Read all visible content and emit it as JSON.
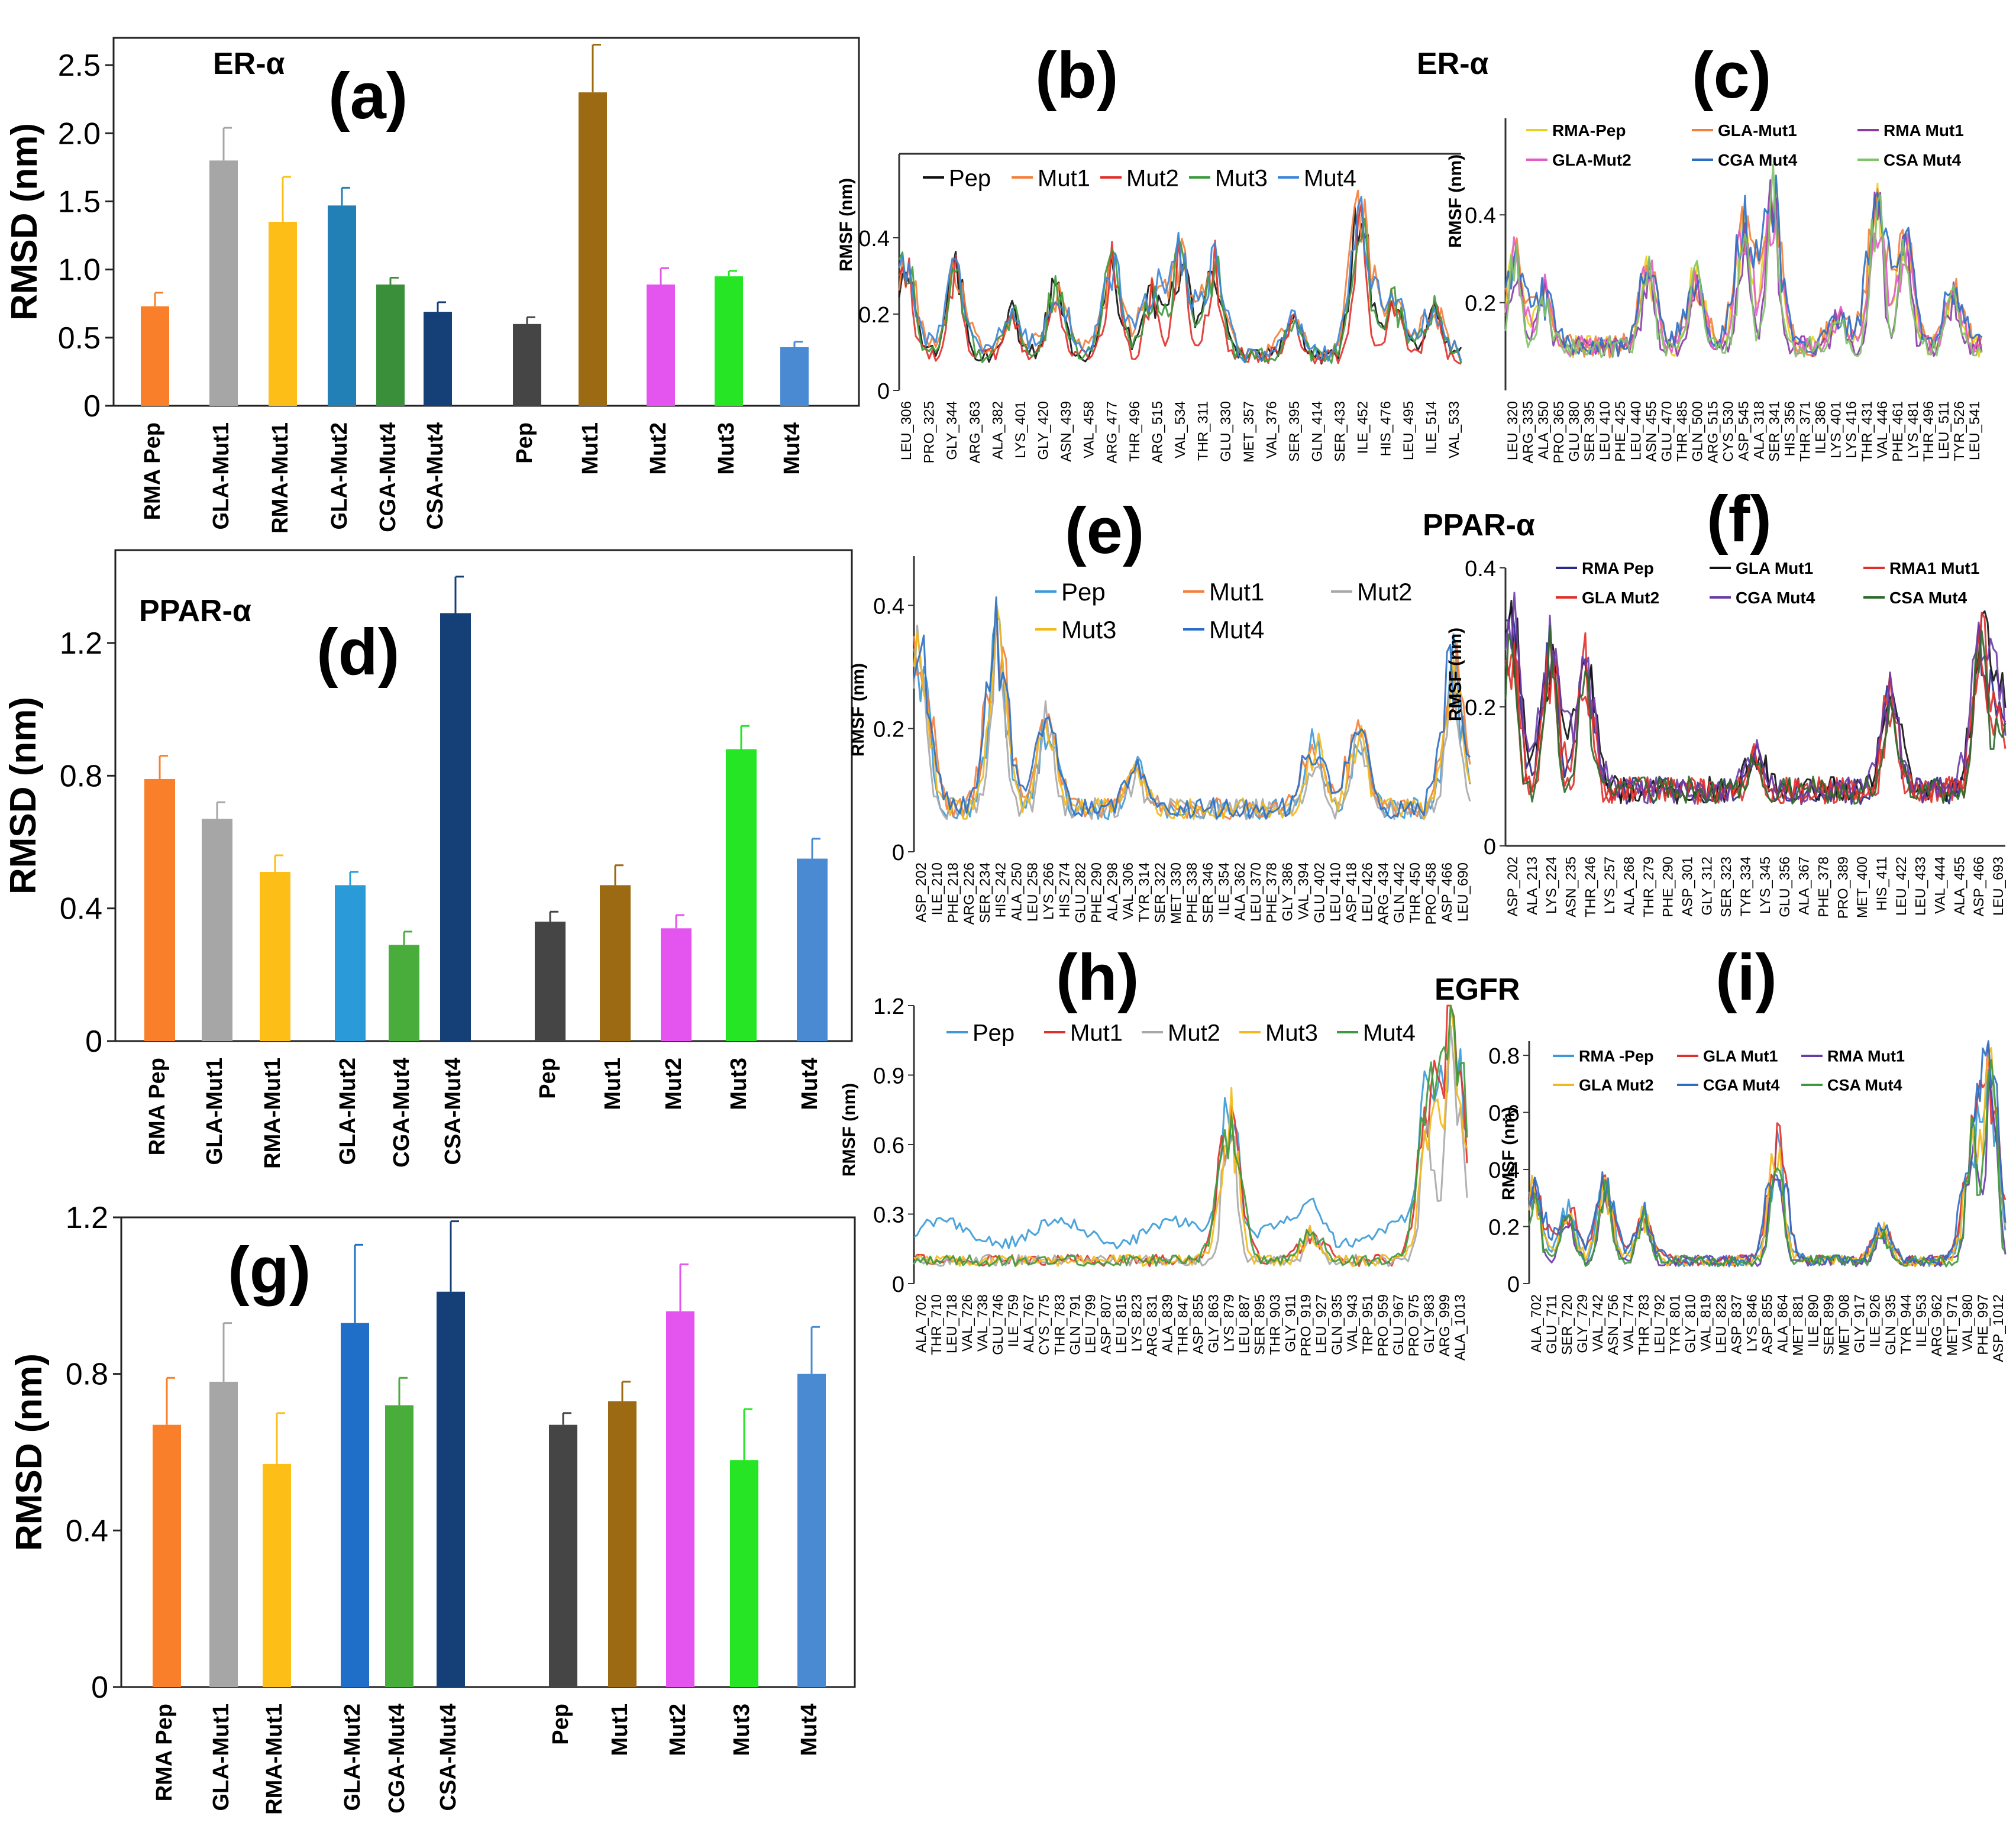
{
  "panels": {
    "a": {
      "letter": "(a)",
      "label": "ER-α"
    },
    "b": {
      "letter": "(b)"
    },
    "c": {
      "letter": "(c)",
      "label": "ER-α"
    },
    "d": {
      "letter": "(d)",
      "label": "PPAR-α"
    },
    "e": {
      "letter": "(e)"
    },
    "f": {
      "letter": "(f)",
      "label": "PPAR-α"
    },
    "g": {
      "letter": "(g)"
    },
    "h": {
      "letter": "(h)",
      "label": "EGFR"
    },
    "i": {
      "letter": "(i)"
    }
  },
  "chart_data": [
    {
      "id": "a",
      "type": "bar",
      "ylabel": "RMSD (nm)",
      "ylim": [
        0,
        2.7
      ],
      "yticks": [
        "0",
        "0.5",
        "1.0",
        "1.5",
        "2.0",
        "2.5"
      ],
      "ytick_values": [
        0,
        0.5,
        1.0,
        1.5,
        2.0,
        2.5
      ],
      "categories": [
        "RMA Pep",
        "GLA-Mut1",
        "RMA-Mut1",
        "GLA-Mut2",
        "CGA-Mut4",
        "CSA-Mut4",
        "Pep",
        "Mut1",
        "Mut2",
        "Mut3",
        "Mut4"
      ],
      "values": [
        0.73,
        1.8,
        1.35,
        1.47,
        0.89,
        0.69,
        0.6,
        2.3,
        0.89,
        0.95,
        0.43
      ],
      "errors": [
        0.1,
        0.24,
        0.33,
        0.13,
        0.05,
        0.07,
        0.05,
        0.35,
        0.12,
        0.04,
        0.04
      ],
      "colors": [
        "#f97f2a",
        "#a6a6a6",
        "#fdbf17",
        "#2280b6",
        "#3a8f3a",
        "#153f77",
        "#454545",
        "#9c6a12",
        "#e454ee",
        "#25e525",
        "#4a8ad2"
      ]
    },
    {
      "id": "b",
      "type": "line",
      "ylabel": "RMSF (nm)",
      "ylim": [
        0,
        0.62
      ],
      "yticks": [
        "0",
        "0.2",
        "0.4"
      ],
      "ytick_values": [
        0,
        0.2,
        0.4
      ],
      "xticks": [
        "LEU_306",
        "PRO_325",
        "GLY_344",
        "ARG_363",
        "ALA_382",
        "LYS_401",
        "GLY_420",
        "ASN_439",
        "VAL_458",
        "ARG_477",
        "THR_496",
        "ARG_515",
        "VAL_534",
        "THR_311",
        "GLU_330",
        "MET_357",
        "VAL_376",
        "SER_395",
        "GLN_414",
        "SER_433",
        "ILE_452",
        "HIS_476",
        "LEU_495",
        "ILE_514",
        "VAL_533"
      ],
      "peaks": [
        [
          0.01,
          0.42
        ],
        [
          0.1,
          0.36
        ],
        [
          0.2,
          0.22
        ],
        [
          0.28,
          0.3
        ],
        [
          0.38,
          0.38
        ],
        [
          0.45,
          0.3
        ],
        [
          0.5,
          0.4
        ],
        [
          0.56,
          0.38
        ],
        [
          0.7,
          0.2
        ],
        [
          0.82,
          0.55
        ],
        [
          0.88,
          0.27
        ],
        [
          0.95,
          0.25
        ]
      ],
      "base": 0.09,
      "series": [
        {
          "name": "Pep",
          "color": "#111111"
        },
        {
          "name": "Mut1",
          "color": "#f47e3a"
        },
        {
          "name": "Mut2",
          "color": "#e0302a"
        },
        {
          "name": "Mut3",
          "color": "#3c9a3c"
        },
        {
          "name": "Mut4",
          "color": "#3a86d8"
        }
      ]
    },
    {
      "id": "c",
      "type": "line",
      "ylabel": "RMSF (nm)",
      "ylim": [
        0,
        0.62
      ],
      "yticks": [
        "0.2",
        "0.4"
      ],
      "ytick_values": [
        0.2,
        0.4
      ],
      "xticks": [
        "LEU_320",
        "ARG_335",
        "ALA_350",
        "PRO_365",
        "GLU_380",
        "SER_395",
        "LEU_410",
        "PHE_425",
        "LEU_440",
        "ASN_455",
        "GLU_470",
        "THR_485",
        "GLN_500",
        "ARG_515",
        "CYS_530",
        "ASP_545",
        "ALA_318",
        "SER_341",
        "HIS_356",
        "THR_371",
        "ILE_386",
        "LYS_401",
        "LYS_416",
        "THR_431",
        "VAL_446",
        "PHE_461",
        "LYS_481",
        "THR_496",
        "LEU_511",
        "TYR_526",
        "LEU_541"
      ],
      "peaks": [
        [
          0.02,
          0.35
        ],
        [
          0.08,
          0.25
        ],
        [
          0.3,
          0.32
        ],
        [
          0.4,
          0.3
        ],
        [
          0.5,
          0.44
        ],
        [
          0.56,
          0.52
        ],
        [
          0.7,
          0.2
        ],
        [
          0.78,
          0.52
        ],
        [
          0.84,
          0.42
        ],
        [
          0.94,
          0.25
        ]
      ],
      "base": 0.1,
      "series": [
        {
          "name": "RMA-Pep",
          "color": "#e8d21e"
        },
        {
          "name": "GLA-Mut1",
          "color": "#f47e3a"
        },
        {
          "name": "RMA Mut1",
          "color": "#8a3aa8"
        },
        {
          "name": "GLA-Mut2",
          "color": "#e45cc8"
        },
        {
          "name": "CGA Mut4",
          "color": "#2b6fc4"
        },
        {
          "name": "CSA Mut4",
          "color": "#7fc46a"
        }
      ]
    },
    {
      "id": "d",
      "type": "bar",
      "ylabel": "RMSD (nm)",
      "ylim": [
        0,
        1.48
      ],
      "yticks": [
        "0",
        "0.4",
        "0.8",
        "1.2"
      ],
      "ytick_values": [
        0,
        0.4,
        0.8,
        1.2
      ],
      "categories": [
        "RMA Pep",
        "GLA-Mut1",
        "RMA-Mut1",
        "GLA-Mut2",
        "CGA-Mut4",
        "CSA-Mut4",
        "Pep",
        "Mut1",
        "Mut2",
        "Mut3",
        "Mut4"
      ],
      "values": [
        0.79,
        0.67,
        0.51,
        0.47,
        0.29,
        1.29,
        0.36,
        0.47,
        0.34,
        0.88,
        0.55
      ],
      "errors": [
        0.07,
        0.05,
        0.05,
        0.04,
        0.04,
        0.11,
        0.03,
        0.06,
        0.04,
        0.07,
        0.06
      ],
      "colors": [
        "#f97f2a",
        "#a6a6a6",
        "#fdbf17",
        "#2a9bd8",
        "#48ad3b",
        "#153f77",
        "#454545",
        "#9c6a12",
        "#e454ee",
        "#25e525",
        "#4a8ad2"
      ]
    },
    {
      "id": "e",
      "type": "line",
      "ylabel": "RMSF (nm)",
      "ylim": [
        0,
        0.48
      ],
      "yticks": [
        "0",
        "0.2",
        "0.4"
      ],
      "ytick_values": [
        0,
        0.2,
        0.4
      ],
      "xticks": [
        "ASP_202",
        "ILE_210",
        "PHE_218",
        "ARG_226",
        "SER_234",
        "HIS_242",
        "ALA_250",
        "LEU_258",
        "LYS_266",
        "HIS_274",
        "GLU_282",
        "PHE_290",
        "ALA_298",
        "VAL_306",
        "TYR_314",
        "SER_322",
        "MET_330",
        "PHE_338",
        "SER_346",
        "ILE_354",
        "ALA_362",
        "LEU_370",
        "PHE_378",
        "GLY_386",
        "VAL_394",
        "GLU_402",
        "LEU_410",
        "ASP_418",
        "LEU_426",
        "ARG_434",
        "GLN_442",
        "THR_450",
        "PRO_458",
        "ASP_466",
        "LEU_690"
      ],
      "peaks": [
        [
          0.01,
          0.4
        ],
        [
          0.15,
          0.42
        ],
        [
          0.24,
          0.25
        ],
        [
          0.4,
          0.15
        ],
        [
          0.72,
          0.2
        ],
        [
          0.8,
          0.22
        ],
        [
          0.97,
          0.36
        ]
      ],
      "base": 0.07,
      "series": [
        {
          "name": "Pep",
          "color": "#3a9ad8"
        },
        {
          "name": "Mut1",
          "color": "#f47e3a"
        },
        {
          "name": "Mut2",
          "color": "#a8a8a8"
        },
        {
          "name": "Mut3",
          "color": "#f3b81a"
        },
        {
          "name": "Mut4",
          "color": "#2b6fc4"
        }
      ]
    },
    {
      "id": "f",
      "type": "line",
      "ylabel": "RMSF (nm)",
      "ylim": [
        0,
        0.4
      ],
      "yticks": [
        "0",
        "0.2",
        "0.4"
      ],
      "ytick_values": [
        0,
        0.2,
        0.4
      ],
      "xticks": [
        "ASP_202",
        "ALA_213",
        "LYS_224",
        "ASN_235",
        "THR_246",
        "LYS_257",
        "ALA_268",
        "THR_279",
        "PHE_290",
        "ASP_301",
        "GLY_312",
        "SER_323",
        "TYR_334",
        "LYS_345",
        "GLU_356",
        "ALA_367",
        "PHE_378",
        "PRO_389",
        "MET_400",
        "HIS_411",
        "LEU_422",
        "LEU_433",
        "VAL_444",
        "ALA_455",
        "ASP_466",
        "LEU_693"
      ],
      "peaks": [
        [
          0.01,
          0.38
        ],
        [
          0.09,
          0.33
        ],
        [
          0.16,
          0.3
        ],
        [
          0.5,
          0.14
        ],
        [
          0.77,
          0.25
        ],
        [
          0.95,
          0.34
        ],
        [
          0.99,
          0.23
        ]
      ],
      "base": 0.08,
      "series": [
        {
          "name": "RMA Pep",
          "color": "#2a2a8a"
        },
        {
          "name": "GLA Mut1",
          "color": "#111111"
        },
        {
          "name": "RMA1 Mut1",
          "color": "#e0302a"
        },
        {
          "name": "GLA Mut2",
          "color": "#e0302a"
        },
        {
          "name": "CGA Mut4",
          "color": "#6a3aa8"
        },
        {
          "name": "CSA Mut4",
          "color": "#2a6a2a"
        }
      ]
    },
    {
      "id": "g",
      "type": "bar",
      "ylabel": "RMSD (nm)",
      "ylim": [
        0,
        1.2
      ],
      "yticks": [
        "0",
        "0.4",
        "0.8",
        "1.2"
      ],
      "ytick_values": [
        0,
        0.4,
        0.8,
        1.2
      ],
      "categories": [
        "RMA Pep",
        "GLA-Mut1",
        "RMA-Mut1",
        "GLA-Mut2",
        "CGA-Mut4",
        "CSA-Mut4",
        "Pep",
        "Mut1",
        "Mut2",
        "Mut3",
        "Mut4"
      ],
      "values": [
        0.67,
        0.78,
        0.57,
        0.93,
        0.72,
        1.01,
        0.67,
        0.73,
        0.96,
        0.58,
        0.8
      ],
      "errors": [
        0.12,
        0.15,
        0.13,
        0.2,
        0.07,
        0.18,
        0.03,
        0.05,
        0.12,
        0.13,
        0.12
      ],
      "colors": [
        "#f97f2a",
        "#a6a6a6",
        "#fdbf17",
        "#1f6fc8",
        "#48ad3b",
        "#153f77",
        "#454545",
        "#9c6a12",
        "#e454ee",
        "#25e525",
        "#4a8ad2"
      ]
    },
    {
      "id": "h",
      "type": "line",
      "ylabel": "RMSF (nm)",
      "ylim": [
        0,
        1.2
      ],
      "yticks": [
        "0",
        "0.3",
        "0.6",
        "0.9",
        "1.2"
      ],
      "ytick_values": [
        0,
        0.3,
        0.6,
        0.9,
        1.2
      ],
      "xticks": [
        "ALA_702",
        "THR_710",
        "LEU_718",
        "VAL_726",
        "VAL_738",
        "GLU_746",
        "ILE_759",
        "ALA_767",
        "CYS_775",
        "THR_783",
        "GLN_791",
        "LEU_799",
        "ASP_807",
        "LEU_815",
        "LYS_823",
        "ARG_831",
        "ALA_839",
        "THR_847",
        "ASP_855",
        "GLY_863",
        "LYS_879",
        "LEU_887",
        "SER_895",
        "THR_903",
        "GLY_911",
        "PRO_919",
        "LEU_927",
        "GLN_935",
        "VAL_943",
        "TRP_951",
        "PRO_959",
        "GLU_967",
        "PRO_975",
        "GLY_983",
        "ARG_999",
        "ALA_1013"
      ],
      "peaks": [
        [
          0.57,
          0.88
        ],
        [
          0.72,
          0.25
        ],
        [
          0.93,
          0.85
        ],
        [
          0.97,
          1.0
        ],
        [
          0.99,
          0.6
        ]
      ],
      "base": 0.1,
      "series": [
        {
          "name": "Pep",
          "color": "#3a9ad8"
        },
        {
          "name": "Mut1",
          "color": "#e0302a"
        },
        {
          "name": "Mut2",
          "color": "#a8a8a8"
        },
        {
          "name": "Mut3",
          "color": "#f3b81a"
        },
        {
          "name": "Mut4",
          "color": "#3c9a3c"
        }
      ]
    },
    {
      "id": "i",
      "type": "line",
      "ylabel": "RMSF (nm)",
      "ylim": [
        0,
        0.85
      ],
      "yticks": [
        "0",
        "0.2",
        "0.4",
        "0.6",
        "0.8"
      ],
      "ytick_values": [
        0,
        0.2,
        0.4,
        0.6,
        0.8
      ],
      "xticks": [
        "ALA_702",
        "GLU_711",
        "SER_720",
        "GLY_729",
        "VAL_742",
        "ASN_756",
        "VAL_774",
        "THR_783",
        "LEU_792",
        "TYR_801",
        "GLY_810",
        "VAL_819",
        "LEU_828",
        "ASP_837",
        "LYS_846",
        "ASP_855",
        "ALA_864",
        "MET_881",
        "ILE_890",
        "SER_899",
        "MET_908",
        "GLY_917",
        "ILE_926",
        "GLN_935",
        "TYR_944",
        "ILE_953",
        "ARG_962",
        "MET_971",
        "VAL_980",
        "PHE_997",
        "ASP_1012"
      ],
      "peaks": [
        [
          0.01,
          0.4
        ],
        [
          0.08,
          0.3
        ],
        [
          0.16,
          0.4
        ],
        [
          0.24,
          0.27
        ],
        [
          0.52,
          0.58
        ],
        [
          0.74,
          0.22
        ],
        [
          0.93,
          0.6
        ],
        [
          0.97,
          0.85
        ]
      ],
      "base": 0.08,
      "series": [
        {
          "name": "RMA -Pep",
          "color": "#3a9ad8"
        },
        {
          "name": "GLA Mut1",
          "color": "#e0302a"
        },
        {
          "name": "RMA Mut1",
          "color": "#6a3aa8"
        },
        {
          "name": "GLA Mut2",
          "color": "#f3b81a"
        },
        {
          "name": "CGA Mut4",
          "color": "#2b6fc4"
        },
        {
          "name": "CSA Mut4",
          "color": "#3c9a3c"
        }
      ]
    }
  ]
}
